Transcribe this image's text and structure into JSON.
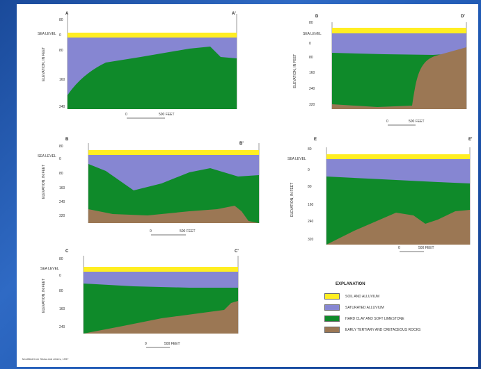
{
  "colors": {
    "soil": "#ffee22",
    "saturated": "#8686d2",
    "limestone": "#0f8a2a",
    "bedrock": "#9b7754",
    "background": "#2a62bd"
  },
  "sections": [
    {
      "id": "a",
      "start": "A",
      "end": "A'",
      "sea_level": "SEA LEVEL",
      "ylabel": "ELEVATION, IN FEET",
      "ticks": [
        "80",
        "0",
        "80",
        "160",
        "240"
      ],
      "scale_zero": "0",
      "scale_label": "500 FEET"
    },
    {
      "id": "b",
      "start": "B",
      "end": "B'",
      "sea_level": "SEA LEVEL",
      "ylabel": "ELEVATION, IN FEET",
      "ticks": [
        "80",
        "0",
        "80",
        "160",
        "240",
        "320"
      ],
      "scale_zero": "0",
      "scale_label": "500 FEET"
    },
    {
      "id": "c",
      "start": "C",
      "end": "C'",
      "sea_level": "SEA LEVEL",
      "ylabel": "ELEVATION, IN FEET",
      "ticks": [
        "80",
        "0",
        "80",
        "160",
        "240"
      ],
      "scale_zero": "0",
      "scale_label": "500 FEET"
    },
    {
      "id": "d",
      "start": "D",
      "end": "D'",
      "sea_level": "SEA LEVEL",
      "ylabel": "ELEVATION, IN FEET",
      "ticks": [
        "80",
        "0",
        "80",
        "160",
        "240",
        "320"
      ],
      "scale_zero": "0",
      "scale_label": "500 FEET"
    },
    {
      "id": "e",
      "start": "E",
      "end": "E'",
      "sea_level": "SEA LEVEL",
      "ylabel": "ELEVATION, IN FEET",
      "ticks": [
        "80",
        "0",
        "80",
        "160",
        "240",
        "320"
      ],
      "scale_zero": "0",
      "scale_label": "500 FEET"
    }
  ],
  "legend": {
    "title": "EXPLANATION",
    "items": [
      {
        "label": "SOIL AND ALLUVIUM"
      },
      {
        "label": "SATURATED ALLUVIUM"
      },
      {
        "label": "HARD CLAY AND SOFT LIMESTONE"
      },
      {
        "label": "EARLY TERTIARY AND CRETACEOUS ROCKS"
      }
    ]
  },
  "credit": "Modified from Shaw and others, 1997"
}
